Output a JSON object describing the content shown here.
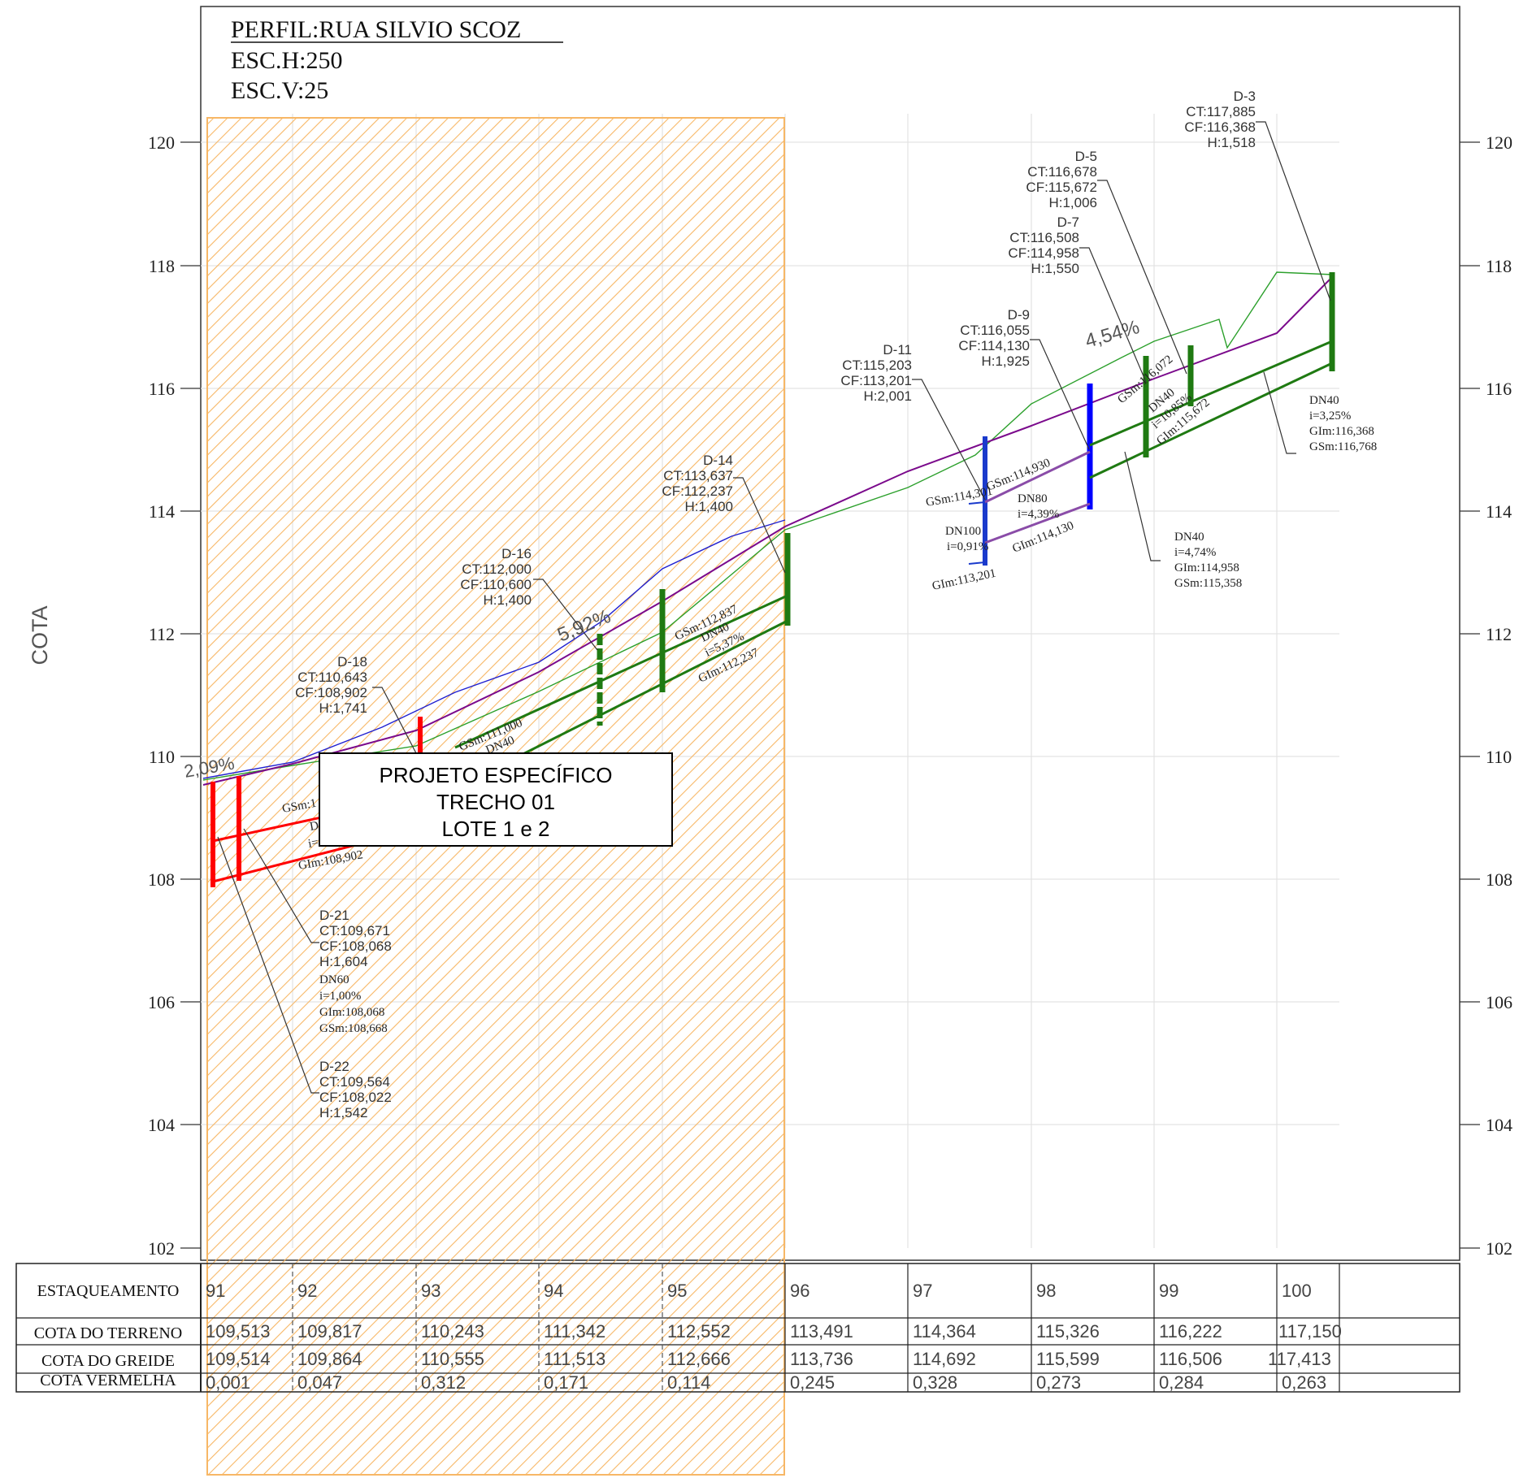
{
  "header": {
    "title": "PERFIL:RUA SILVIO SCOZ",
    "scale_h": "ESC.H:250",
    "scale_v": "ESC.V:25"
  },
  "axis": {
    "label": "COTA",
    "ymin": 102,
    "ymax": 120,
    "ticks": [
      "120",
      "118",
      "116",
      "114",
      "112",
      "110",
      "108",
      "106",
      "104",
      "102"
    ]
  },
  "callout": {
    "line1": "PROJETO ESPECÍFICO",
    "line2": "TRECHO 01",
    "line3": "LOTE 1 e 2"
  },
  "slopes": [
    "2,09%",
    "5,92%",
    "4,54%"
  ],
  "nodes": [
    {
      "name": "D-3",
      "ct": "CT:117,885",
      "cf": "CF:116,368",
      "h": "H:1,518"
    },
    {
      "name": "D-5",
      "ct": "CT:116,678",
      "cf": "CF:115,672",
      "h": "H:1,006"
    },
    {
      "name": "D-7",
      "ct": "CT:116,508",
      "cf": "CF:114,958",
      "h": "H:1,550"
    },
    {
      "name": "D-9",
      "ct": "CT:116,055",
      "cf": "CF:114,130",
      "h": "H:1,925"
    },
    {
      "name": "D-11",
      "ct": "CT:115,203",
      "cf": "CF:113,201",
      "h": "H:2,001"
    },
    {
      "name": "D-14",
      "ct": "CT:113,637",
      "cf": "CF:112,237",
      "h": "H:1,400"
    },
    {
      "name": "D-16",
      "ct": "CT:112,000",
      "cf": "CF:110,600",
      "h": "H:1,400"
    },
    {
      "name": "D-18",
      "ct": "CT:110,643",
      "cf": "CF:108,902",
      "h": "H:1,741"
    },
    {
      "name": "D-21",
      "ct": "CT:109,671",
      "cf": "CF:108,068",
      "h": "H:1,604"
    },
    {
      "name": "D-22",
      "ct": "CT:109,564",
      "cf": "CF:108,022",
      "h": "H:1,542"
    }
  ],
  "pipes": {
    "d21_dn": "DN60",
    "d21_i": "i=1,00%",
    "d21_gi": "GIm:108,068",
    "d21_gs": "GSm:108,668",
    "r1_dn": "DN40",
    "r1_i": "i=3,25%",
    "r1_gi": "GIm:116,368",
    "r1_gs": "GSm:116,768",
    "r2_dn": "DN40",
    "r2_i": "i=4,74%",
    "r2_gi": "GIm:114,958",
    "r2_gs": "GSm:115,358",
    "b_gs1": "GSm:114,301",
    "b_gs2": "GSm:114,930",
    "b_dn80": "DN80",
    "b_i80": "i=4,39%",
    "b_gi2": "GIm:114,130",
    "b_dn100": "DN100",
    "b_i100": "i=0,91%",
    "b_gi1": "GIm:113,201",
    "g_gs": "GSm:112,837",
    "g_dn": "DN40",
    "g_i": "i=5,37%",
    "g_gi": "GIm:112,237",
    "g2_gs": "GSm:111,000",
    "g2_dn": "DN40",
    "d5_gs": "GSm:116,072",
    "d5_dn": "DN40",
    "d5_i": "i=10,85%",
    "d5_gi": "GIm:115,672",
    "r_gs": "GSm:1",
    "r_dn": "D",
    "r_i": "i=",
    "r_gi": "GIm:108,902"
  },
  "table": {
    "headers": [
      "ESTAQUEAMENTO",
      "COTA DO TERRENO",
      "COTA DO GREIDE",
      "COTA VERMELHA"
    ],
    "estaqueamento": [
      "91",
      "92",
      "93",
      "94",
      "95",
      "96",
      "97",
      "98",
      "99",
      "100"
    ],
    "terreno": [
      "109,513",
      "109,817",
      "110,243",
      "111,342",
      "112,552",
      "113,491",
      "114,364",
      "115,326",
      "116,222",
      "117,150"
    ],
    "greide": [
      "109,514",
      "109,864",
      "110,555",
      "111,513",
      "112,666",
      "113,736",
      "114,692",
      "115,599",
      "116,506",
      "117,413"
    ],
    "vermelha": [
      "0,001",
      "0,047",
      "0,312",
      "0,171",
      "0,114",
      "0,245",
      "0,328",
      "0,273",
      "0,284",
      "0,263"
    ]
  },
  "colors": {
    "terrain": "#2ca02c",
    "greide": "#7b0a8c",
    "blue_line": "#2020d0",
    "red": "#ff0000",
    "green": "#1f7a12",
    "blue": "#0000ff",
    "purple": "#8a4ca8",
    "hatch": "#f7b766"
  }
}
